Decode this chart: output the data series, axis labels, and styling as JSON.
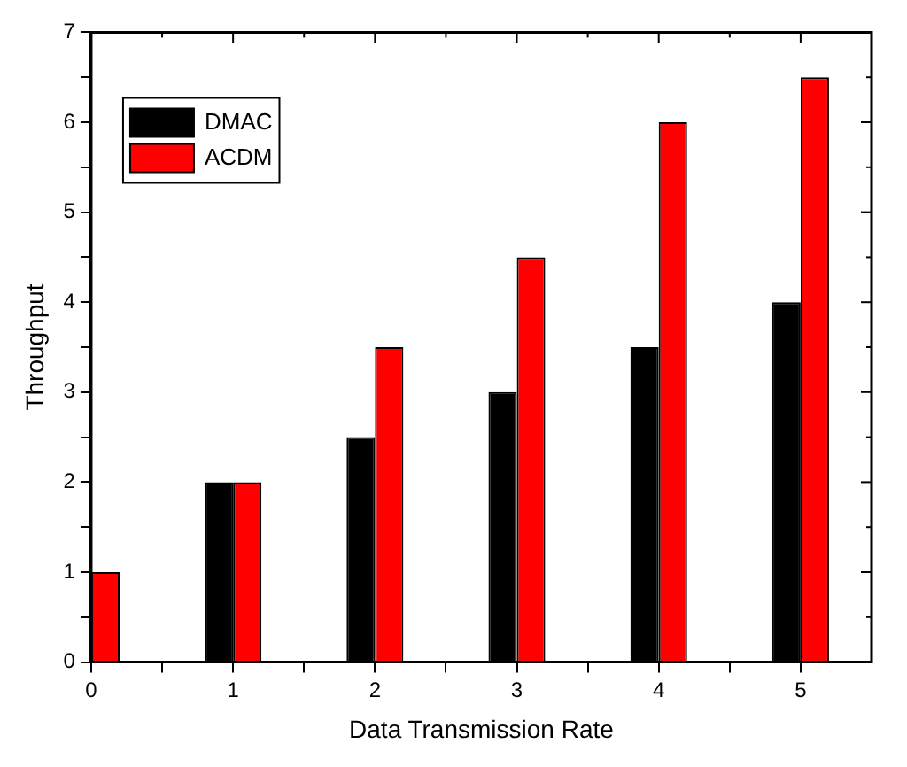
{
  "chart_data": {
    "type": "bar",
    "xlabel": "Data Transmission Rate",
    "ylabel": "Throughput",
    "x": [
      0,
      1,
      2,
      3,
      4,
      5
    ],
    "series": [
      {
        "name": "DMAC",
        "color": "#000000",
        "values": [
          null,
          2,
          2.5,
          3,
          3.5,
          4
        ]
      },
      {
        "name": "ACDM",
        "color": "#ff0000",
        "values": [
          1,
          2,
          3.5,
          4.5,
          6,
          6.5
        ]
      }
    ],
    "xlim": [
      0,
      5.5
    ],
    "xticks": [
      0,
      {
        "value": 0.5,
        "label": null
      },
      1,
      {
        "value": 1.5,
        "label": null
      },
      2,
      {
        "value": 2.5,
        "label": null
      },
      3,
      {
        "value": 3.5,
        "label": null
      },
      4,
      {
        "value": 4.5,
        "label": null
      },
      5
    ],
    "ylim": [
      0,
      7
    ],
    "yticks": [
      0,
      {
        "value": 0.5,
        "label": null
      },
      1,
      {
        "value": 1.5,
        "label": null
      },
      2,
      {
        "value": 2.5,
        "label": null
      },
      3,
      {
        "value": 3.5,
        "label": null
      },
      4,
      {
        "value": 4.5,
        "label": null
      },
      5,
      {
        "value": 5.5,
        "label": null
      },
      6,
      {
        "value": 6.5,
        "label": null
      },
      7
    ],
    "grid": false,
    "legend": "top left"
  }
}
